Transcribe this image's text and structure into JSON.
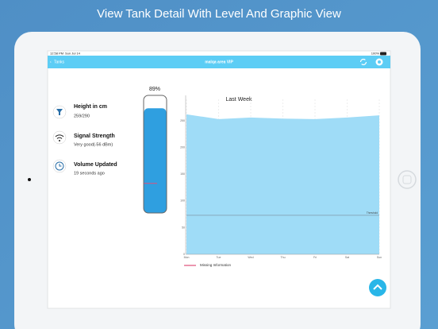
{
  "header": {
    "title": "View Tank Detail With Level And Graphic View"
  },
  "status_bar": {
    "time": "12:58 PM",
    "date": "Sun Jul 14",
    "battery": "100%"
  },
  "nav_bar": {
    "back": "Tanks",
    "title": "malqa area VIP"
  },
  "info": [
    {
      "label": "Height in cm",
      "value": "259/290"
    },
    {
      "label": "Signal Strength",
      "value": "Very good(-56 dBm)"
    },
    {
      "label": "Volume Updated",
      "value": "19 seconds ago"
    }
  ],
  "tank": {
    "level": 89,
    "level_label": "89%",
    "color": "#2f9fe0"
  },
  "chart_data": {
    "type": "area",
    "title": "Last Week",
    "categories": [
      "Mon",
      "Tue",
      "Wed",
      "Thu",
      "Fri",
      "Sat",
      "Sun"
    ],
    "values": [
      262,
      253,
      256,
      254,
      253,
      256,
      260
    ],
    "color": "#9fdcf7",
    "ylim": [
      0,
      290
    ],
    "yticks": [
      0,
      50,
      100,
      150,
      200,
      250
    ],
    "grid": true,
    "threshold": {
      "value": 73,
      "label": "Threshold",
      "color": "#7a8a99"
    },
    "legend": {
      "name": "Missing Information",
      "color": "#e0507a"
    }
  }
}
